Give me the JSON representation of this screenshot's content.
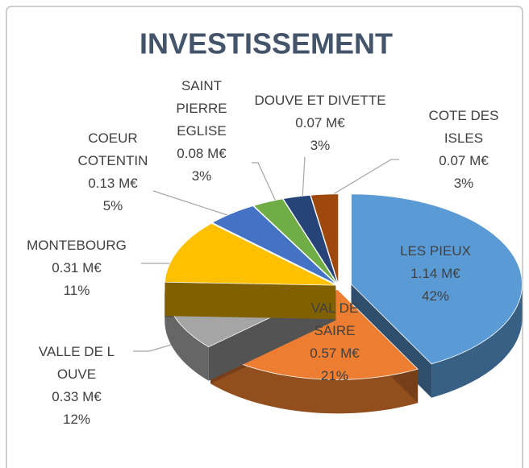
{
  "chart_data": {
    "type": "pie3d",
    "title": "INVESTISSEMENT",
    "categories": [
      "LES PIEUX",
      "VAL DE SAIRE",
      "VALLE DE L OUVE",
      "MONTEBOURG",
      "COEUR COTENTIN",
      "SAINT PIERRE EGLISE",
      "DOUVE ET DIVETTE",
      "COTE DES ISLES"
    ],
    "values": [
      1.14,
      0.57,
      0.33,
      0.31,
      0.13,
      0.08,
      0.07,
      0.07
    ],
    "value_labels": [
      "1.14 M€",
      "0.57 M€",
      "0.33 M€",
      "0.31 M€",
      "0.13 M€",
      "0.08 M€",
      "0.07 M€",
      "0.07 M€"
    ],
    "percents": [
      42,
      21,
      12,
      11,
      5,
      3,
      3,
      3
    ],
    "percent_labels": [
      "42%",
      "21%",
      "12%",
      "11%",
      "5%",
      "3%",
      "3%",
      "3%"
    ],
    "colors": [
      "#5b9bd5",
      "#ed7d31",
      "#a5a5a5",
      "#ffc000",
      "#4472c4",
      "#70ad47",
      "#264478",
      "#9e480e"
    ]
  }
}
